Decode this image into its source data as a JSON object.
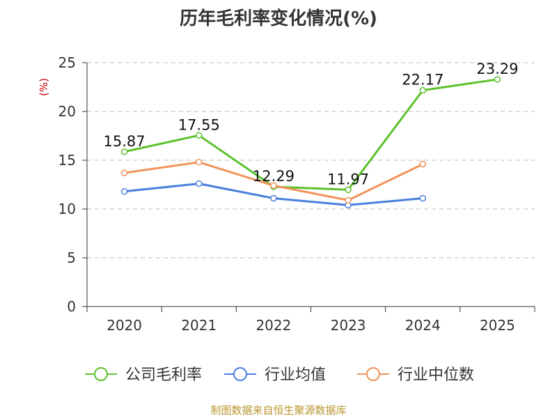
{
  "title": "历年毛利率变化情况(%)",
  "source": "制图数据来自恒生聚源数据库",
  "chart_data": {
    "type": "line",
    "title": "历年毛利率变化情况(%)",
    "ylabel": "(%)",
    "xlabel": "",
    "categories": [
      "2020",
      "2021",
      "2022",
      "2023",
      "2024",
      "2025"
    ],
    "ylim": [
      0,
      25
    ],
    "yticks": [
      "0",
      "5",
      "10",
      "15",
      "20",
      "25"
    ],
    "grid": true,
    "legend_position": "bottom",
    "series": [
      {
        "name": "公司毛利率",
        "color": "#5cc12b",
        "values": [
          15.87,
          17.55,
          12.29,
          11.97,
          22.17,
          23.29
        ],
        "labels": [
          "15.87",
          "17.55",
          "12.29",
          "11.97",
          "22.17",
          "23.29"
        ]
      },
      {
        "name": "行业均值",
        "color": "#4a7fdc",
        "values": [
          11.8,
          12.6,
          11.1,
          10.4,
          11.1,
          null
        ]
      },
      {
        "name": "行业中位数",
        "color": "#f2925a",
        "values": [
          13.7,
          14.8,
          12.4,
          10.9,
          14.6,
          null
        ]
      }
    ]
  }
}
